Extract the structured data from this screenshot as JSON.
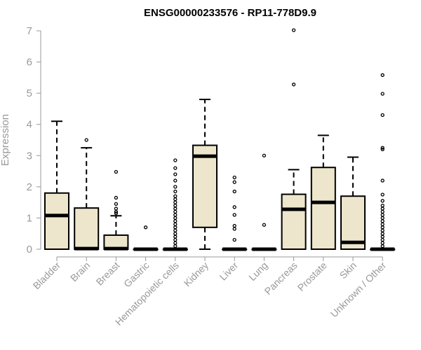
{
  "chart_data": {
    "type": "boxplot",
    "title": "ENSG00000233576 - RP11-778D9.9",
    "xlabel": "",
    "ylabel": "Expression",
    "ylim": [
      0,
      7
    ],
    "yticks": [
      0,
      1,
      2,
      3,
      4,
      5,
      6,
      7
    ],
    "categories": [
      "Bladder",
      "Brain",
      "Breast",
      "Gastric",
      "Hematopoietic cells",
      "Kidney",
      "Liver",
      "Lung",
      "Pancreas",
      "Prostate",
      "Skin",
      "Unknown / Other"
    ],
    "boxes": [
      {
        "min": 0,
        "q1": 0,
        "median": 1.08,
        "q3": 1.8,
        "max": 4.1,
        "outliers": []
      },
      {
        "min": 0,
        "q1": 0,
        "median": 0.02,
        "q3": 1.32,
        "max": 3.25,
        "outliers": [
          3.5
        ]
      },
      {
        "min": 0,
        "q1": 0,
        "median": 0.02,
        "q3": 0.45,
        "max": 1.07,
        "outliers": [
          1.15,
          1.2,
          1.3,
          1.45,
          1.65,
          2.48
        ]
      },
      {
        "min": 0,
        "q1": 0,
        "median": 0.0,
        "q3": 0.0,
        "max": 0.0,
        "outliers": [
          0.7
        ]
      },
      {
        "min": 0,
        "q1": 0,
        "median": 0.0,
        "q3": 0.0,
        "max": 0.0,
        "outliers": [
          0.1,
          0.2,
          0.3,
          0.4,
          0.5,
          0.6,
          0.7,
          0.8,
          0.9,
          1.0,
          1.1,
          1.2,
          1.3,
          1.4,
          1.5,
          1.6,
          1.7,
          1.85,
          2.0,
          2.2,
          2.4,
          2.6,
          2.85
        ]
      },
      {
        "min": 0,
        "q1": 0.7,
        "median": 2.98,
        "q3": 3.33,
        "max": 4.8,
        "outliers": []
      },
      {
        "min": 0,
        "q1": 0,
        "median": 0.0,
        "q3": 0.0,
        "max": 0.0,
        "outliers": [
          0.3,
          0.65,
          0.75,
          1.1,
          1.35,
          1.85,
          2.15,
          2.3
        ]
      },
      {
        "min": 0,
        "q1": 0,
        "median": 0.0,
        "q3": 0.0,
        "max": 0.0,
        "outliers": [
          0.78,
          3.0
        ]
      },
      {
        "min": 0,
        "q1": 0,
        "median": 1.28,
        "q3": 1.76,
        "max": 2.55,
        "outliers": [
          5.28,
          7.02
        ]
      },
      {
        "min": 0,
        "q1": 0,
        "median": 1.5,
        "q3": 2.62,
        "max": 3.65,
        "outliers": []
      },
      {
        "min": 0,
        "q1": 0,
        "median": 0.22,
        "q3": 1.7,
        "max": 2.95,
        "outliers": []
      },
      {
        "min": 0,
        "q1": 0,
        "median": 0.0,
        "q3": 0.0,
        "max": 0.0,
        "outliers": [
          0.1,
          0.2,
          0.3,
          0.4,
          0.5,
          0.6,
          0.7,
          0.8,
          0.9,
          1.0,
          1.1,
          1.2,
          1.3,
          1.4,
          1.55,
          1.75,
          2.2,
          3.2,
          3.25,
          4.3,
          4.98,
          5.58
        ]
      }
    ],
    "box_fill": "#ede6cc",
    "box_stroke": "#000000",
    "axis_color": "#999999",
    "grid": false,
    "legend": "none"
  }
}
